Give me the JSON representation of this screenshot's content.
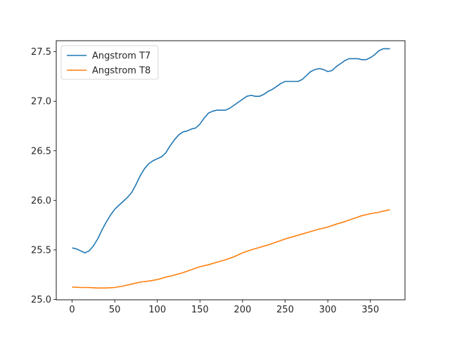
{
  "chart_data": {
    "type": "line",
    "title": "",
    "xlabel": "",
    "ylabel": "",
    "xlim": [
      -18.6,
      390.6
    ],
    "ylim": [
      24.996,
      27.611
    ],
    "x_ticks": [
      0,
      50,
      100,
      150,
      200,
      250,
      300,
      350
    ],
    "y_ticks": [
      25.0,
      25.5,
      26.0,
      26.5,
      27.0,
      27.5
    ],
    "grid": false,
    "legend_position": "top-left",
    "series": [
      {
        "name": "Angstrom T7",
        "color": "#1f77b4",
        "points": [
          [
            0,
            25.52
          ],
          [
            5,
            25.51
          ],
          [
            10,
            25.49
          ],
          [
            15,
            25.47
          ],
          [
            20,
            25.49
          ],
          [
            25,
            25.54
          ],
          [
            30,
            25.61
          ],
          [
            35,
            25.7
          ],
          [
            40,
            25.78
          ],
          [
            45,
            25.85
          ],
          [
            50,
            25.91
          ],
          [
            55,
            25.95
          ],
          [
            60,
            25.99
          ],
          [
            65,
            26.03
          ],
          [
            70,
            26.08
          ],
          [
            75,
            26.16
          ],
          [
            80,
            26.25
          ],
          [
            85,
            26.32
          ],
          [
            90,
            26.37
          ],
          [
            95,
            26.4
          ],
          [
            100,
            26.42
          ],
          [
            105,
            26.44
          ],
          [
            110,
            26.48
          ],
          [
            115,
            26.55
          ],
          [
            120,
            26.61
          ],
          [
            125,
            26.66
          ],
          [
            130,
            26.69
          ],
          [
            135,
            26.7
          ],
          [
            140,
            26.72
          ],
          [
            145,
            26.73
          ],
          [
            150,
            26.77
          ],
          [
            155,
            26.83
          ],
          [
            160,
            26.88
          ],
          [
            165,
            26.9
          ],
          [
            170,
            26.91
          ],
          [
            175,
            26.91
          ],
          [
            180,
            26.91
          ],
          [
            185,
            26.93
          ],
          [
            190,
            26.96
          ],
          [
            195,
            26.99
          ],
          [
            200,
            27.02
          ],
          [
            205,
            27.05
          ],
          [
            210,
            27.06
          ],
          [
            215,
            27.05
          ],
          [
            220,
            27.05
          ],
          [
            225,
            27.07
          ],
          [
            230,
            27.1
          ],
          [
            235,
            27.12
          ],
          [
            240,
            27.15
          ],
          [
            245,
            27.18
          ],
          [
            250,
            27.2
          ],
          [
            255,
            27.2
          ],
          [
            260,
            27.2
          ],
          [
            265,
            27.2
          ],
          [
            270,
            27.22
          ],
          [
            275,
            27.26
          ],
          [
            280,
            27.3
          ],
          [
            285,
            27.32
          ],
          [
            290,
            27.33
          ],
          [
            295,
            27.32
          ],
          [
            300,
            27.3
          ],
          [
            305,
            27.31
          ],
          [
            310,
            27.35
          ],
          [
            315,
            27.38
          ],
          [
            320,
            27.41
          ],
          [
            325,
            27.43
          ],
          [
            330,
            27.43
          ],
          [
            335,
            27.43
          ],
          [
            340,
            27.42
          ],
          [
            345,
            27.42
          ],
          [
            350,
            27.44
          ],
          [
            355,
            27.47
          ],
          [
            360,
            27.51
          ],
          [
            365,
            27.53
          ],
          [
            370,
            27.53
          ],
          [
            373,
            27.53
          ]
        ]
      },
      {
        "name": "Angstrom T8",
        "color": "#ff7f0e",
        "points": [
          [
            0,
            25.125
          ],
          [
            10,
            25.12
          ],
          [
            20,
            25.12
          ],
          [
            30,
            25.115
          ],
          [
            40,
            25.115
          ],
          [
            50,
            25.12
          ],
          [
            60,
            25.135
          ],
          [
            70,
            25.155
          ],
          [
            80,
            25.175
          ],
          [
            90,
            25.185
          ],
          [
            100,
            25.2
          ],
          [
            110,
            25.225
          ],
          [
            120,
            25.245
          ],
          [
            130,
            25.27
          ],
          [
            140,
            25.3
          ],
          [
            150,
            25.33
          ],
          [
            160,
            25.35
          ],
          [
            170,
            25.375
          ],
          [
            180,
            25.4
          ],
          [
            190,
            25.43
          ],
          [
            200,
            25.47
          ],
          [
            210,
            25.5
          ],
          [
            220,
            25.525
          ],
          [
            230,
            25.55
          ],
          [
            240,
            25.58
          ],
          [
            250,
            25.61
          ],
          [
            260,
            25.635
          ],
          [
            270,
            25.66
          ],
          [
            280,
            25.685
          ],
          [
            290,
            25.71
          ],
          [
            300,
            25.73
          ],
          [
            310,
            25.76
          ],
          [
            320,
            25.785
          ],
          [
            330,
            25.815
          ],
          [
            340,
            25.845
          ],
          [
            350,
            25.865
          ],
          [
            360,
            25.88
          ],
          [
            370,
            25.9
          ],
          [
            373,
            25.905
          ]
        ]
      }
    ]
  }
}
